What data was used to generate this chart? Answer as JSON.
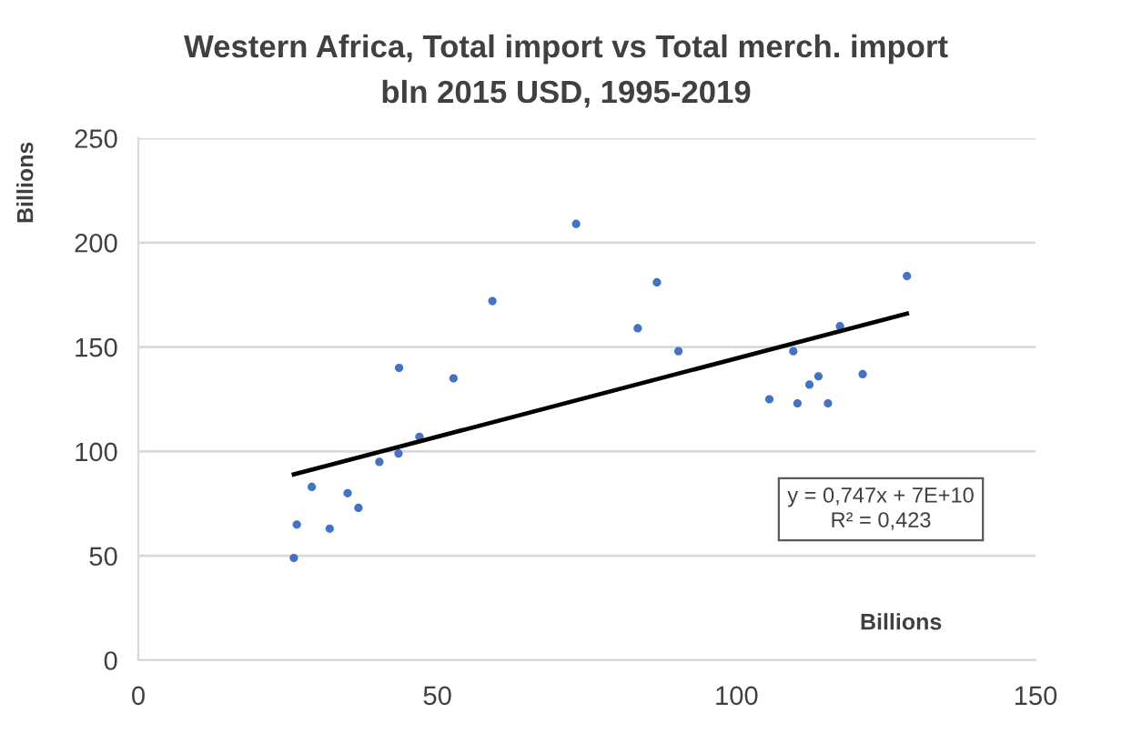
{
  "chart_data": {
    "type": "scatter",
    "title": "Western Africa, Total import vs Total merch. import",
    "subtitle": "bln 2015 USD, 1995-2019",
    "xlabel": "Billions",
    "ylabel": "Billions",
    "xlim": [
      0,
      150
    ],
    "xticks": [
      0,
      50,
      100,
      150
    ],
    "ylim": [
      0,
      250
    ],
    "yticks": [
      0,
      50,
      100,
      150,
      200,
      250
    ],
    "grid": "y",
    "marker": "circle",
    "series": [
      {
        "color": "#4472c4",
        "x": [
          26,
          26.5,
          29,
          32,
          35,
          36.8,
          40.3,
          43.5,
          43.6,
          47,
          52.7,
          59.2,
          73.2,
          83.5,
          86.7,
          90.3,
          105.5,
          109.5,
          110.2,
          112.2,
          113.7,
          115.3,
          117.3,
          121.1,
          128.5
        ],
        "values": [
          49,
          65,
          83,
          63,
          80,
          73,
          95,
          99,
          140,
          107,
          135,
          172,
          209,
          159,
          181,
          148,
          125,
          148,
          123,
          132,
          136,
          123,
          160,
          137,
          184
        ]
      },
      {
        "type": "line",
        "color": "#000000",
        "marker": "none",
        "line_style": "solid",
        "x": [
          26,
          128.5
        ],
        "values": [
          89,
          166
        ]
      }
    ],
    "annotations": [
      "y = 0,747x + 7E+10\nR² = 0,423"
    ]
  }
}
